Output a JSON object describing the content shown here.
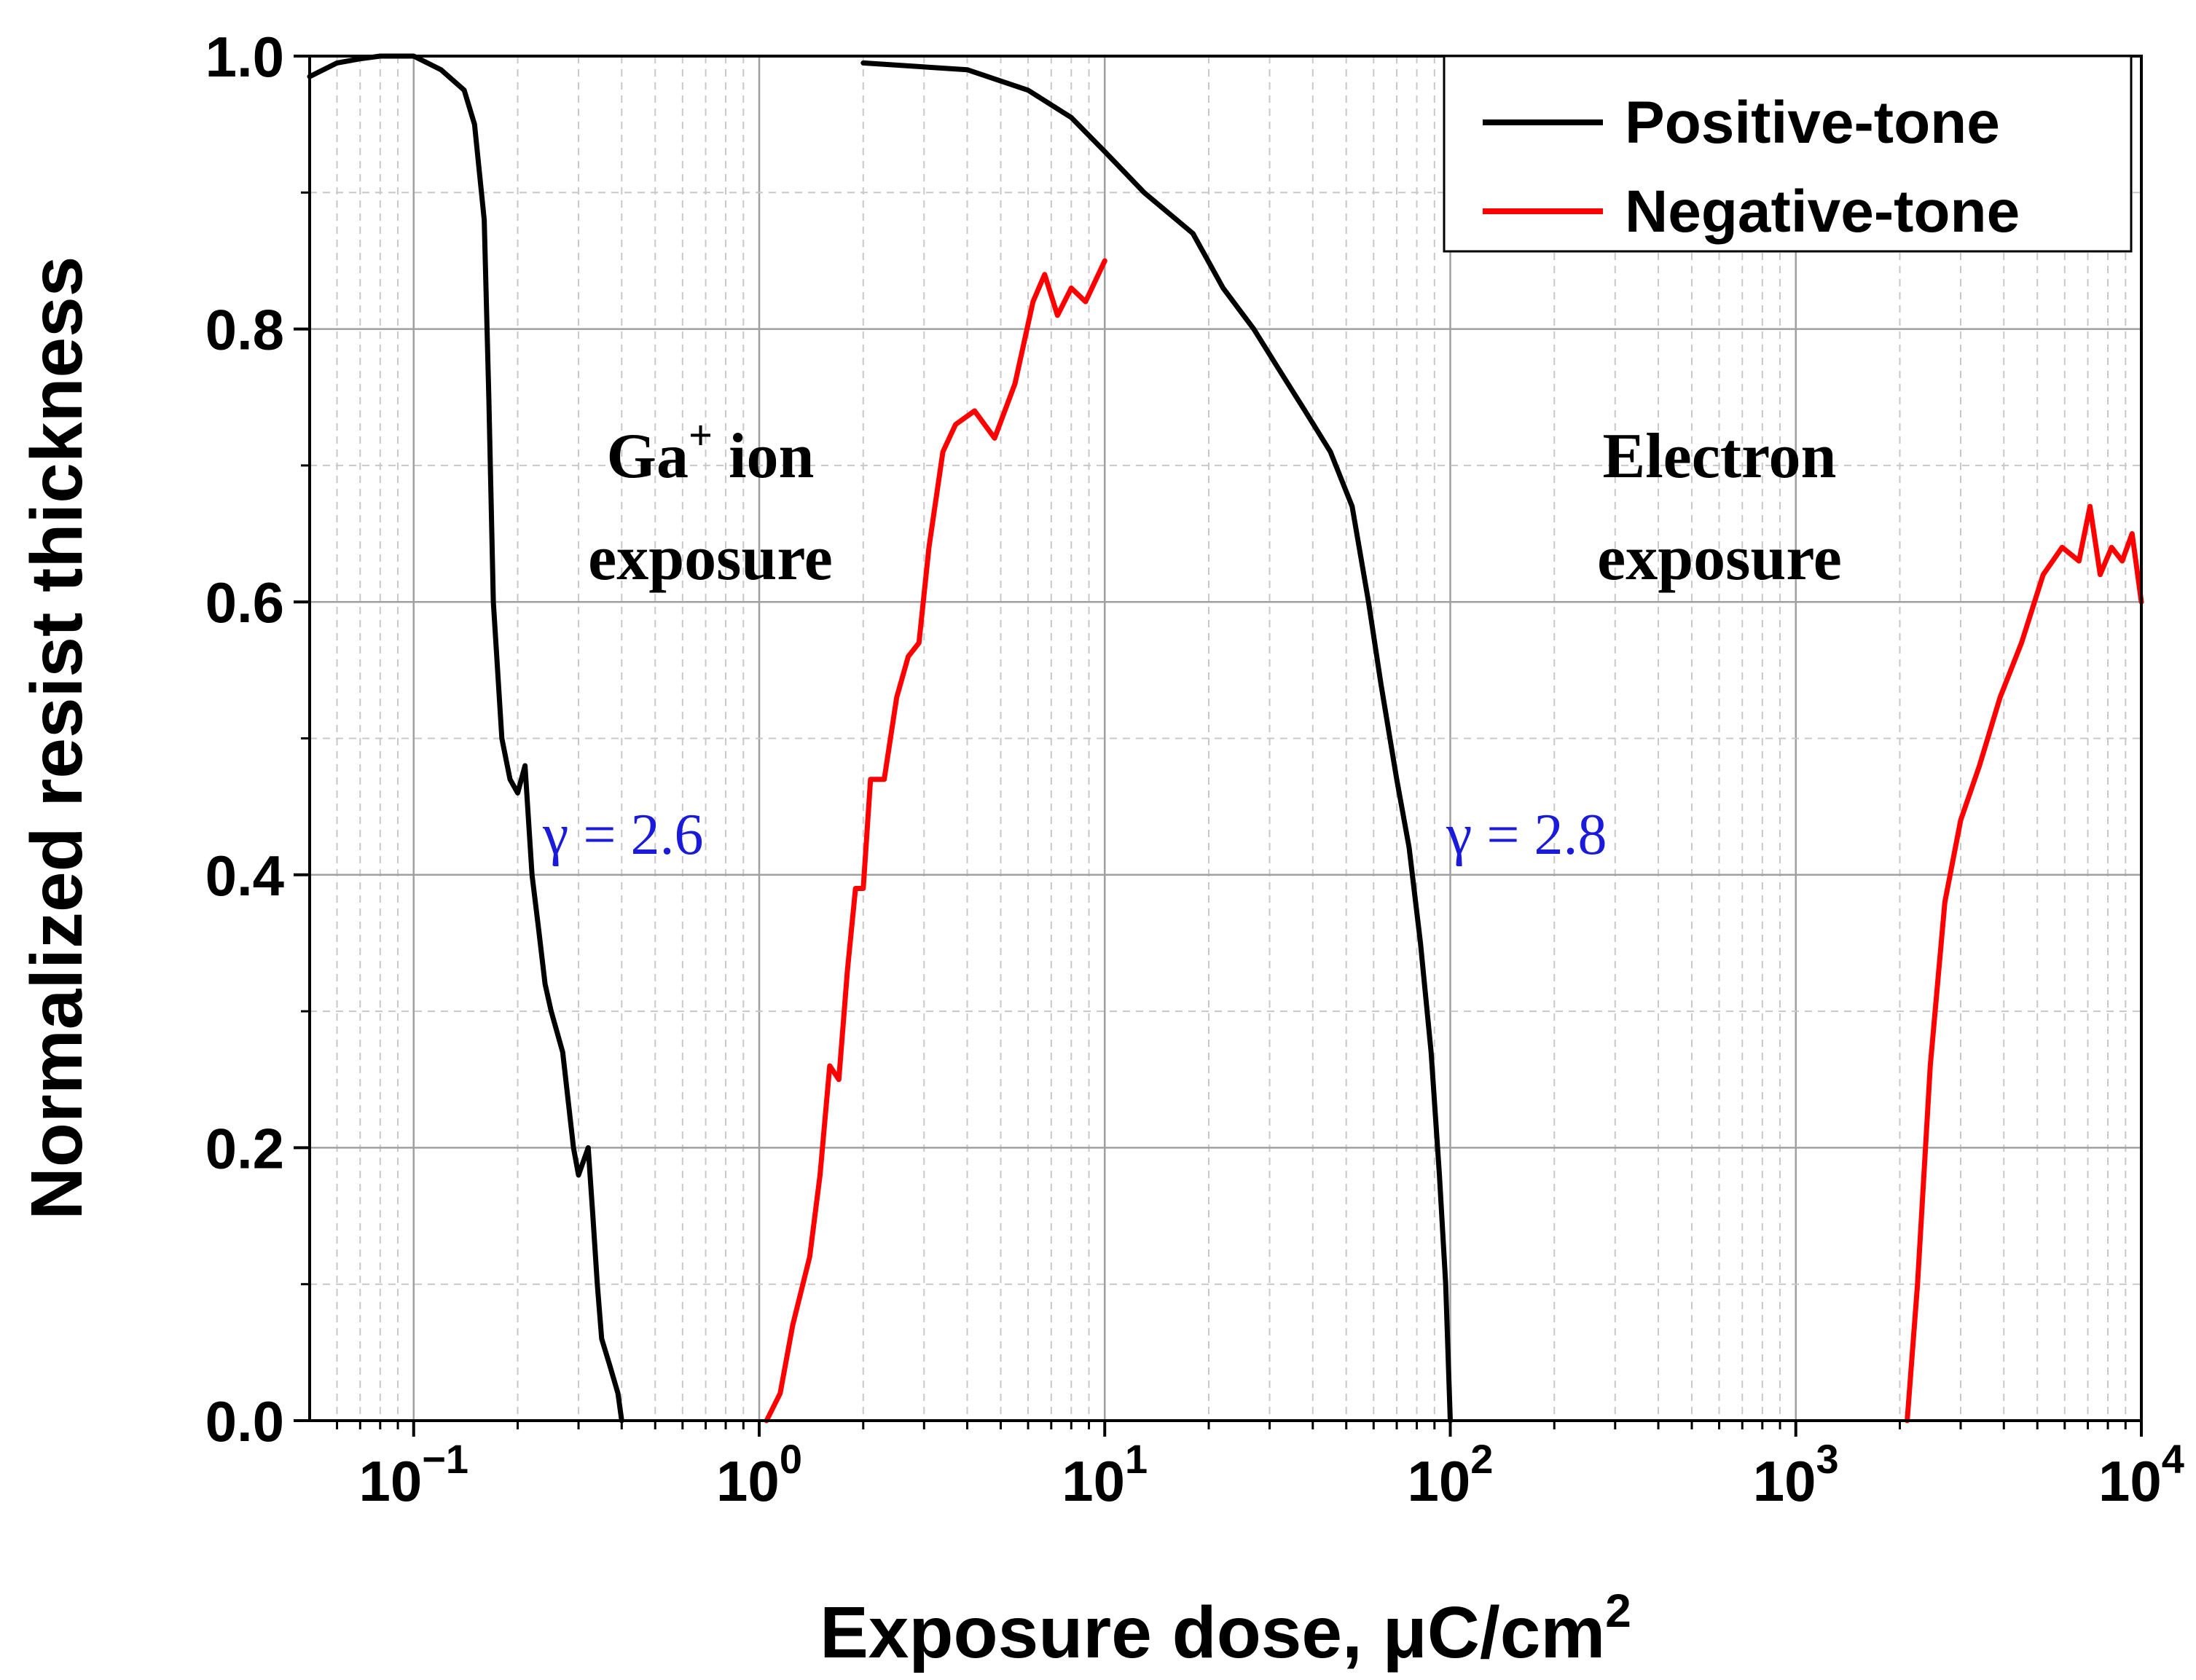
{
  "chart_data": {
    "type": "line",
    "title": "",
    "xlabel": "Exposure dose, μC/cm",
    "xlabel_sup": "2",
    "ylabel": "Normalized resist thickness",
    "xscale": "log",
    "xlim": [
      0.05,
      10000
    ],
    "ylim": [
      0,
      1.0
    ],
    "grid": true,
    "legend_position": "top-right",
    "x_ticks": [
      {
        "base": "10",
        "exp": "−1",
        "value": 0.1
      },
      {
        "base": "10",
        "exp": "0",
        "value": 1
      },
      {
        "base": "10",
        "exp": "1",
        "value": 10
      },
      {
        "base": "10",
        "exp": "2",
        "value": 100
      },
      {
        "base": "10",
        "exp": "3",
        "value": 1000
      },
      {
        "base": "10",
        "exp": "4",
        "value": 10000
      }
    ],
    "y_ticks": [
      {
        "label": "0.0",
        "value": 0.0
      },
      {
        "label": "0.2",
        "value": 0.2
      },
      {
        "label": "0.4",
        "value": 0.4
      },
      {
        "label": "0.6",
        "value": 0.6
      },
      {
        "label": "0.8",
        "value": 0.8
      },
      {
        "label": "1.0",
        "value": 1.0
      }
    ],
    "series": [
      {
        "name": "Positive-tone",
        "group": "Ga+ ion exposure",
        "color": "#000000",
        "points": [
          [
            0.05,
            0.985
          ],
          [
            0.06,
            0.995
          ],
          [
            0.07,
            0.998
          ],
          [
            0.08,
            1.0
          ],
          [
            0.1,
            1.0
          ],
          [
            0.12,
            0.99
          ],
          [
            0.14,
            0.975
          ],
          [
            0.15,
            0.95
          ],
          [
            0.16,
            0.88
          ],
          [
            0.165,
            0.75
          ],
          [
            0.17,
            0.6
          ],
          [
            0.18,
            0.5
          ],
          [
            0.19,
            0.47
          ],
          [
            0.2,
            0.46
          ],
          [
            0.21,
            0.48
          ],
          [
            0.22,
            0.4
          ],
          [
            0.23,
            0.36
          ],
          [
            0.24,
            0.32
          ],
          [
            0.25,
            0.3
          ],
          [
            0.27,
            0.27
          ],
          [
            0.29,
            0.2
          ],
          [
            0.3,
            0.18
          ],
          [
            0.32,
            0.2
          ],
          [
            0.33,
            0.15
          ],
          [
            0.34,
            0.1
          ],
          [
            0.35,
            0.06
          ],
          [
            0.37,
            0.04
          ],
          [
            0.39,
            0.02
          ],
          [
            0.4,
            0.0
          ]
        ]
      },
      {
        "name": "Negative-tone",
        "group": "Ga+ ion exposure",
        "color": "#ff0000",
        "points": [
          [
            1.05,
            0.0
          ],
          [
            1.15,
            0.02
          ],
          [
            1.25,
            0.07
          ],
          [
            1.4,
            0.12
          ],
          [
            1.5,
            0.18
          ],
          [
            1.6,
            0.26
          ],
          [
            1.7,
            0.25
          ],
          [
            1.8,
            0.33
          ],
          [
            1.9,
            0.39
          ],
          [
            2.0,
            0.39
          ],
          [
            2.1,
            0.47
          ],
          [
            2.3,
            0.47
          ],
          [
            2.5,
            0.53
          ],
          [
            2.7,
            0.56
          ],
          [
            2.9,
            0.57
          ],
          [
            3.1,
            0.64
          ],
          [
            3.4,
            0.71
          ],
          [
            3.7,
            0.73
          ],
          [
            4.2,
            0.74
          ],
          [
            4.8,
            0.72
          ],
          [
            5.5,
            0.76
          ],
          [
            6.2,
            0.82
          ],
          [
            6.7,
            0.84
          ],
          [
            7.3,
            0.81
          ],
          [
            8.0,
            0.83
          ],
          [
            8.8,
            0.82
          ],
          [
            10.0,
            0.85
          ]
        ]
      },
      {
        "name": "Positive-tone",
        "group": "Electron exposure",
        "color": "#000000",
        "points": [
          [
            2.0,
            0.995
          ],
          [
            4.0,
            0.99
          ],
          [
            6.0,
            0.975
          ],
          [
            8.0,
            0.955
          ],
          [
            10.0,
            0.93
          ],
          [
            13.0,
            0.9
          ],
          [
            18.0,
            0.87
          ],
          [
            22.0,
            0.83
          ],
          [
            27.0,
            0.8
          ],
          [
            32.0,
            0.77
          ],
          [
            38.0,
            0.74
          ],
          [
            45.0,
            0.71
          ],
          [
            52.0,
            0.67
          ],
          [
            58.0,
            0.6
          ],
          [
            63.0,
            0.54
          ],
          [
            70.0,
            0.47
          ],
          [
            76.0,
            0.42
          ],
          [
            82.0,
            0.35
          ],
          [
            88.0,
            0.27
          ],
          [
            93.0,
            0.18
          ],
          [
            97.0,
            0.1
          ],
          [
            100.0,
            0.0
          ]
        ]
      },
      {
        "name": "Negative-tone",
        "group": "Electron exposure",
        "color": "#ff0000",
        "points": [
          [
            2100,
            0.0
          ],
          [
            2250,
            0.1
          ],
          [
            2450,
            0.26
          ],
          [
            2700,
            0.38
          ],
          [
            3000,
            0.44
          ],
          [
            3400,
            0.48
          ],
          [
            3900,
            0.53
          ],
          [
            4500,
            0.57
          ],
          [
            5200,
            0.62
          ],
          [
            5900,
            0.64
          ],
          [
            6600,
            0.63
          ],
          [
            7100,
            0.67
          ],
          [
            7600,
            0.62
          ],
          [
            8200,
            0.64
          ],
          [
            8800,
            0.63
          ],
          [
            9400,
            0.65
          ],
          [
            10000,
            0.6
          ]
        ]
      }
    ],
    "annotations": [
      {
        "name": "ga-ion-label",
        "line1_main": "Ga",
        "line1_sup": "+",
        "line1_rest": " ion",
        "line2": "exposure",
        "x": 0.35,
        "y": 0.7
      },
      {
        "name": "electron-label",
        "line1": "Electron",
        "line2": "exposure",
        "x": 250,
        "y": 0.7
      },
      {
        "name": "gamma-ion",
        "text": "γ = 2.6",
        "x": 0.24,
        "y": 0.43
      },
      {
        "name": "gamma-electron",
        "text": "γ = 2.8",
        "x": 100,
        "y": 0.43
      }
    ]
  },
  "legend": {
    "items": [
      {
        "label": "Positive-tone",
        "color": "#000000"
      },
      {
        "label": "Negative-tone",
        "color": "#ff0000"
      }
    ]
  }
}
